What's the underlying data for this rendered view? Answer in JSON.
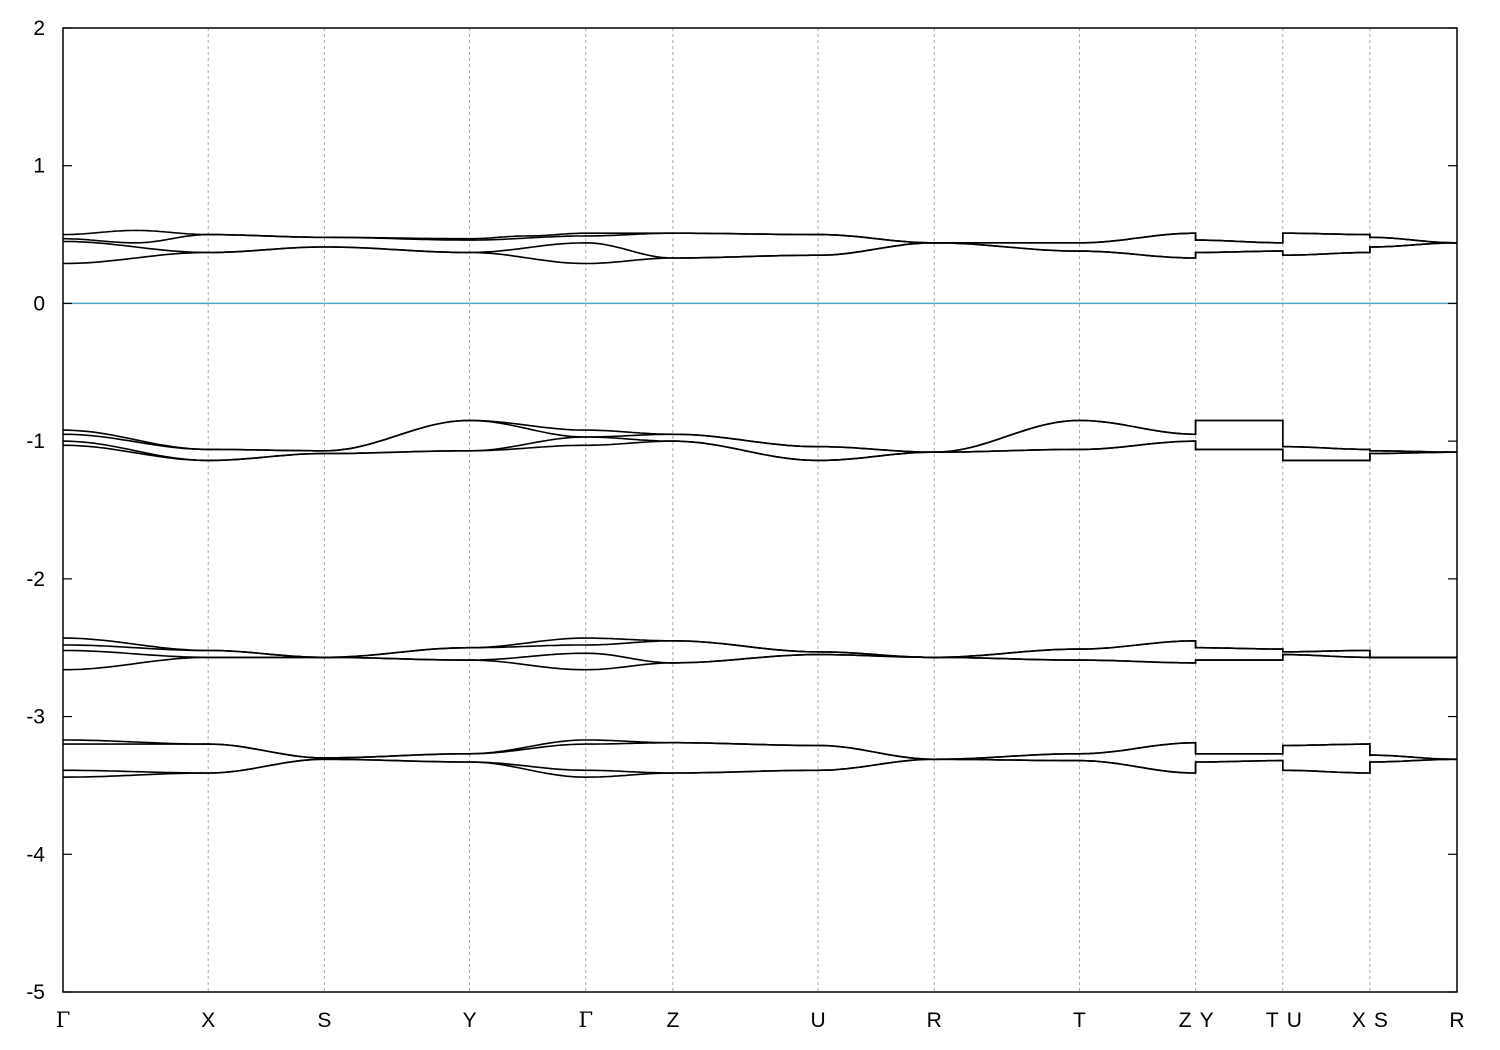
{
  "chart_data": {
    "type": "line",
    "title": "",
    "xlabel": "",
    "ylabel": "",
    "ylim": [
      -5,
      2
    ],
    "y_ticks": [
      2,
      1,
      0,
      -1,
      -2,
      -3,
      -4,
      -5
    ],
    "grid": "vertical dotted lines at high-symmetry points",
    "fermi_level": 0,
    "colors": {
      "bands": "#000000",
      "fermi_line": "#4aa8c0",
      "grid": "#aaaaaa",
      "frame": "#000000"
    },
    "kpath": [
      {
        "label": "Γ",
        "x": 0.0
      },
      {
        "label": "X",
        "x": 1.0
      },
      {
        "label": "S",
        "x": 1.8
      },
      {
        "label": "Y",
        "x": 2.8
      },
      {
        "label": "Γ",
        "x": 3.6
      },
      {
        "label": "Z",
        "x": 4.2
      },
      {
        "label": "U",
        "x": 5.2
      },
      {
        "label": "R",
        "x": 6.0
      },
      {
        "label": "T",
        "x": 7.0
      },
      {
        "label": "Z",
        "x": 7.8
      },
      {
        "label": "Y",
        "x": 7.8
      },
      {
        "label": "T",
        "x": 8.4
      },
      {
        "label": "U",
        "x": 8.4
      },
      {
        "label": "X",
        "x": 9.0
      },
      {
        "label": "S",
        "x": 9.0
      },
      {
        "label": "R",
        "x": 9.6
      }
    ],
    "series": [
      {
        "values": [
          [
            0.0,
            0.5
          ],
          [
            0.5,
            0.53
          ],
          [
            1.0,
            0.5
          ],
          [
            1.8,
            0.48
          ],
          [
            2.8,
            0.46
          ],
          [
            3.6,
            0.49
          ],
          [
            4.2,
            0.51
          ],
          [
            5.2,
            0.5
          ],
          [
            6.0,
            0.44
          ],
          [
            7.0,
            0.44
          ],
          [
            7.8,
            0.51
          ],
          [
            7.8,
            0.46
          ],
          [
            8.4,
            0.44
          ],
          [
            8.4,
            0.51
          ],
          [
            9.0,
            0.5
          ],
          [
            9.0,
            0.48
          ],
          [
            9.6,
            0.44
          ]
        ]
      },
      {
        "values": [
          [
            0.0,
            0.47
          ],
          [
            0.5,
            0.44
          ],
          [
            1.0,
            0.5
          ],
          [
            1.8,
            0.48
          ],
          [
            2.8,
            0.47
          ],
          [
            3.2,
            0.49
          ],
          [
            3.6,
            0.51
          ],
          [
            4.2,
            0.51
          ],
          [
            5.2,
            0.5
          ],
          [
            6.0,
            0.44
          ],
          [
            7.0,
            0.44
          ],
          [
            7.8,
            0.51
          ],
          [
            7.8,
            0.46
          ],
          [
            8.4,
            0.44
          ],
          [
            8.4,
            0.51
          ],
          [
            9.0,
            0.5
          ],
          [
            9.0,
            0.48
          ],
          [
            9.6,
            0.44
          ]
        ]
      },
      {
        "values": [
          [
            0.0,
            0.45
          ],
          [
            1.0,
            0.37
          ],
          [
            1.8,
            0.41
          ],
          [
            2.8,
            0.37
          ],
          [
            3.6,
            0.44
          ],
          [
            4.2,
            0.33
          ],
          [
            5.2,
            0.35
          ],
          [
            6.0,
            0.44
          ],
          [
            7.0,
            0.38
          ],
          [
            7.8,
            0.33
          ],
          [
            7.8,
            0.37
          ],
          [
            8.4,
            0.38
          ],
          [
            8.4,
            0.35
          ],
          [
            9.0,
            0.37
          ],
          [
            9.0,
            0.41
          ],
          [
            9.6,
            0.44
          ]
        ]
      },
      {
        "values": [
          [
            0.0,
            0.29
          ],
          [
            1.0,
            0.37
          ],
          [
            1.8,
            0.41
          ],
          [
            2.8,
            0.37
          ],
          [
            3.6,
            0.29
          ],
          [
            4.2,
            0.33
          ],
          [
            5.2,
            0.35
          ],
          [
            6.0,
            0.44
          ],
          [
            7.0,
            0.38
          ],
          [
            7.8,
            0.33
          ],
          [
            7.8,
            0.37
          ],
          [
            8.4,
            0.38
          ],
          [
            8.4,
            0.35
          ],
          [
            9.0,
            0.37
          ],
          [
            9.0,
            0.41
          ],
          [
            9.6,
            0.44
          ]
        ]
      },
      {
        "values": [
          [
            0.0,
            -0.92
          ],
          [
            1.0,
            -1.06
          ],
          [
            1.8,
            -1.07
          ],
          [
            2.8,
            -0.85
          ],
          [
            3.6,
            -0.92
          ],
          [
            4.2,
            -0.95
          ],
          [
            5.2,
            -1.04
          ],
          [
            6.0,
            -1.08
          ],
          [
            7.0,
            -0.85
          ],
          [
            7.8,
            -0.95
          ],
          [
            7.8,
            -0.85
          ],
          [
            8.4,
            -0.85
          ],
          [
            8.4,
            -1.04
          ],
          [
            9.0,
            -1.06
          ],
          [
            9.0,
            -1.07
          ],
          [
            9.6,
            -1.08
          ]
        ]
      },
      {
        "values": [
          [
            0.0,
            -0.95
          ],
          [
            1.0,
            -1.06
          ],
          [
            1.8,
            -1.07
          ],
          [
            2.8,
            -0.85
          ],
          [
            3.6,
            -0.97
          ],
          [
            4.2,
            -0.95
          ],
          [
            5.2,
            -1.04
          ],
          [
            6.0,
            -1.08
          ],
          [
            7.0,
            -0.85
          ],
          [
            7.8,
            -0.95
          ],
          [
            7.8,
            -0.85
          ],
          [
            8.4,
            -0.85
          ],
          [
            8.4,
            -1.04
          ],
          [
            9.0,
            -1.06
          ],
          [
            9.0,
            -1.07
          ],
          [
            9.6,
            -1.08
          ]
        ]
      },
      {
        "values": [
          [
            0.0,
            -1.0
          ],
          [
            1.0,
            -1.14
          ],
          [
            1.8,
            -1.09
          ],
          [
            2.8,
            -1.07
          ],
          [
            3.6,
            -0.97
          ],
          [
            4.2,
            -1.0
          ],
          [
            5.2,
            -1.14
          ],
          [
            6.0,
            -1.08
          ],
          [
            7.0,
            -1.06
          ],
          [
            7.8,
            -1.0
          ],
          [
            7.8,
            -1.06
          ],
          [
            8.4,
            -1.06
          ],
          [
            8.4,
            -1.14
          ],
          [
            9.0,
            -1.14
          ],
          [
            9.0,
            -1.09
          ],
          [
            9.6,
            -1.08
          ]
        ]
      },
      {
        "values": [
          [
            0.0,
            -1.03
          ],
          [
            1.0,
            -1.14
          ],
          [
            1.8,
            -1.09
          ],
          [
            2.8,
            -1.07
          ],
          [
            3.6,
            -1.03
          ],
          [
            4.2,
            -1.0
          ],
          [
            5.2,
            -1.14
          ],
          [
            6.0,
            -1.08
          ],
          [
            7.0,
            -1.06
          ],
          [
            7.8,
            -1.0
          ],
          [
            7.8,
            -1.06
          ],
          [
            8.4,
            -1.06
          ],
          [
            8.4,
            -1.14
          ],
          [
            9.0,
            -1.14
          ],
          [
            9.0,
            -1.09
          ],
          [
            9.6,
            -1.08
          ]
        ]
      },
      {
        "values": [
          [
            0.0,
            -2.43
          ],
          [
            1.0,
            -2.52
          ],
          [
            1.8,
            -2.57
          ],
          [
            2.8,
            -2.5
          ],
          [
            3.6,
            -2.43
          ],
          [
            4.2,
            -2.45
          ],
          [
            5.2,
            -2.53
          ],
          [
            6.0,
            -2.57
          ],
          [
            7.0,
            -2.51
          ],
          [
            7.8,
            -2.45
          ],
          [
            7.8,
            -2.5
          ],
          [
            8.4,
            -2.51
          ],
          [
            8.4,
            -2.53
          ],
          [
            9.0,
            -2.52
          ],
          [
            9.0,
            -2.57
          ],
          [
            9.6,
            -2.57
          ]
        ]
      },
      {
        "values": [
          [
            0.0,
            -2.48
          ],
          [
            1.0,
            -2.52
          ],
          [
            1.8,
            -2.57
          ],
          [
            2.8,
            -2.5
          ],
          [
            3.6,
            -2.48
          ],
          [
            4.2,
            -2.45
          ],
          [
            5.2,
            -2.53
          ],
          [
            6.0,
            -2.57
          ],
          [
            7.0,
            -2.51
          ],
          [
            7.8,
            -2.45
          ],
          [
            7.8,
            -2.5
          ],
          [
            8.4,
            -2.51
          ],
          [
            8.4,
            -2.53
          ],
          [
            9.0,
            -2.52
          ],
          [
            9.0,
            -2.57
          ],
          [
            9.6,
            -2.57
          ]
        ]
      },
      {
        "values": [
          [
            0.0,
            -2.52
          ],
          [
            1.0,
            -2.57
          ],
          [
            1.8,
            -2.57
          ],
          [
            2.8,
            -2.59
          ],
          [
            3.6,
            -2.54
          ],
          [
            4.2,
            -2.61
          ],
          [
            5.2,
            -2.55
          ],
          [
            6.0,
            -2.57
          ],
          [
            7.0,
            -2.59
          ],
          [
            7.8,
            -2.61
          ],
          [
            7.8,
            -2.59
          ],
          [
            8.4,
            -2.59
          ],
          [
            8.4,
            -2.55
          ],
          [
            9.0,
            -2.57
          ],
          [
            9.0,
            -2.57
          ],
          [
            9.6,
            -2.57
          ]
        ]
      },
      {
        "values": [
          [
            0.0,
            -2.66
          ],
          [
            1.0,
            -2.57
          ],
          [
            1.8,
            -2.57
          ],
          [
            2.8,
            -2.59
          ],
          [
            3.6,
            -2.66
          ],
          [
            4.2,
            -2.61
          ],
          [
            5.2,
            -2.55
          ],
          [
            6.0,
            -2.57
          ],
          [
            7.0,
            -2.59
          ],
          [
            7.8,
            -2.61
          ],
          [
            7.8,
            -2.59
          ],
          [
            8.4,
            -2.59
          ],
          [
            8.4,
            -2.55
          ],
          [
            9.0,
            -2.57
          ],
          [
            9.0,
            -2.57
          ],
          [
            9.6,
            -2.57
          ]
        ]
      },
      {
        "values": [
          [
            0.0,
            -3.17
          ],
          [
            1.0,
            -3.2
          ],
          [
            1.8,
            -3.3
          ],
          [
            2.8,
            -3.27
          ],
          [
            3.6,
            -3.17
          ],
          [
            4.2,
            -3.19
          ],
          [
            5.2,
            -3.21
          ],
          [
            6.0,
            -3.31
          ],
          [
            7.0,
            -3.27
          ],
          [
            7.8,
            -3.19
          ],
          [
            7.8,
            -3.27
          ],
          [
            8.4,
            -3.27
          ],
          [
            8.4,
            -3.21
          ],
          [
            9.0,
            -3.2
          ],
          [
            9.0,
            -3.28
          ],
          [
            9.6,
            -3.31
          ]
        ]
      },
      {
        "values": [
          [
            0.0,
            -3.2
          ],
          [
            1.0,
            -3.2
          ],
          [
            1.8,
            -3.3
          ],
          [
            2.8,
            -3.27
          ],
          [
            3.6,
            -3.2
          ],
          [
            4.2,
            -3.19
          ],
          [
            5.2,
            -3.21
          ],
          [
            6.0,
            -3.31
          ],
          [
            7.0,
            -3.27
          ],
          [
            7.8,
            -3.19
          ],
          [
            7.8,
            -3.27
          ],
          [
            8.4,
            -3.27
          ],
          [
            8.4,
            -3.21
          ],
          [
            9.0,
            -3.2
          ],
          [
            9.0,
            -3.28
          ],
          [
            9.6,
            -3.31
          ]
        ]
      },
      {
        "values": [
          [
            0.0,
            -3.39
          ],
          [
            1.0,
            -3.41
          ],
          [
            1.8,
            -3.31
          ],
          [
            2.8,
            -3.33
          ],
          [
            3.6,
            -3.39
          ],
          [
            4.2,
            -3.41
          ],
          [
            5.2,
            -3.39
          ],
          [
            6.0,
            -3.31
          ],
          [
            7.0,
            -3.32
          ],
          [
            7.8,
            -3.41
          ],
          [
            7.8,
            -3.33
          ],
          [
            8.4,
            -3.32
          ],
          [
            8.4,
            -3.39
          ],
          [
            9.0,
            -3.41
          ],
          [
            9.0,
            -3.33
          ],
          [
            9.6,
            -3.31
          ]
        ]
      },
      {
        "values": [
          [
            0.0,
            -3.44
          ],
          [
            1.0,
            -3.41
          ],
          [
            1.8,
            -3.31
          ],
          [
            2.8,
            -3.33
          ],
          [
            3.6,
            -3.44
          ],
          [
            4.2,
            -3.41
          ],
          [
            5.2,
            -3.39
          ],
          [
            6.0,
            -3.31
          ],
          [
            7.0,
            -3.32
          ],
          [
            7.8,
            -3.41
          ],
          [
            7.8,
            -3.33
          ],
          [
            8.4,
            -3.32
          ],
          [
            8.4,
            -3.39
          ],
          [
            9.0,
            -3.41
          ],
          [
            9.0,
            -3.33
          ],
          [
            9.6,
            -3.31
          ]
        ]
      }
    ]
  }
}
